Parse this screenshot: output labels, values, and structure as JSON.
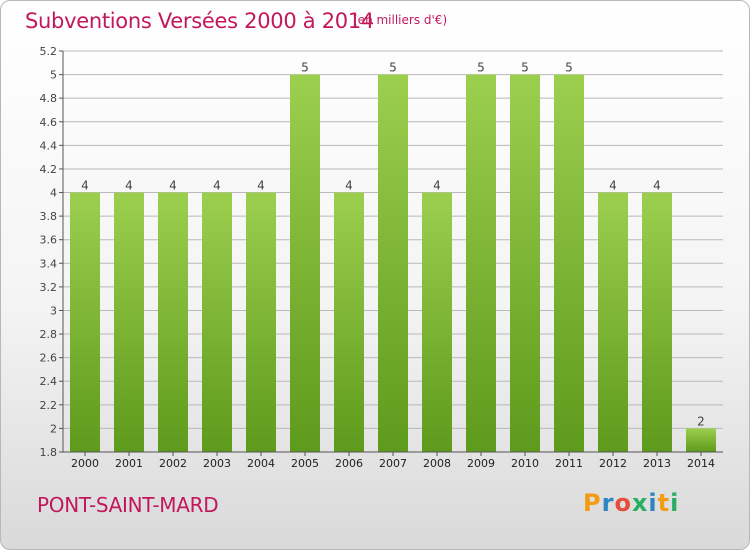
{
  "header": {
    "title": "Subventions Versées 2000 à 2014",
    "subtitle": "(en milliers d'€)"
  },
  "footer": {
    "commune": "PONT-SAINT-MARD",
    "logo_letters": [
      "P",
      "r",
      "o",
      "x",
      "i",
      "t",
      "i"
    ],
    "logo_colors": [
      "#f39c12",
      "#2e86c1",
      "#e74c3c",
      "#27ae60",
      "#2e86c1",
      "#f39c12",
      "#27ae60"
    ]
  },
  "colors": {
    "bar_top": "#9ccf4e",
    "bar_bottom": "#5e9a1c",
    "grid": "#b9b9b9",
    "text_accent": "#c2185b"
  },
  "chart_data": {
    "type": "bar",
    "categories": [
      "2000",
      "2001",
      "2002",
      "2003",
      "2004",
      "2005",
      "2006",
      "2007",
      "2008",
      "2009",
      "2010",
      "2011",
      "2012",
      "2013",
      "2014"
    ],
    "values": [
      4,
      4,
      4,
      4,
      4,
      5,
      4,
      5,
      4,
      5,
      5,
      5,
      4,
      4,
      2
    ],
    "data_labels": [
      "4",
      "4",
      "4",
      "4",
      "4",
      "5",
      "4",
      "5",
      "4",
      "5",
      "5",
      "5",
      "4",
      "4",
      "2"
    ],
    "yticks": [
      "1.8",
      "2",
      "2.2",
      "2.4",
      "2.6",
      "2.8",
      "3",
      "3.2",
      "3.4",
      "3.6",
      "3.8",
      "4",
      "4.2",
      "4.4",
      "4.6",
      "4.8",
      "5",
      "5.2"
    ],
    "ylim": [
      1.8,
      5.2
    ],
    "grid": true
  }
}
